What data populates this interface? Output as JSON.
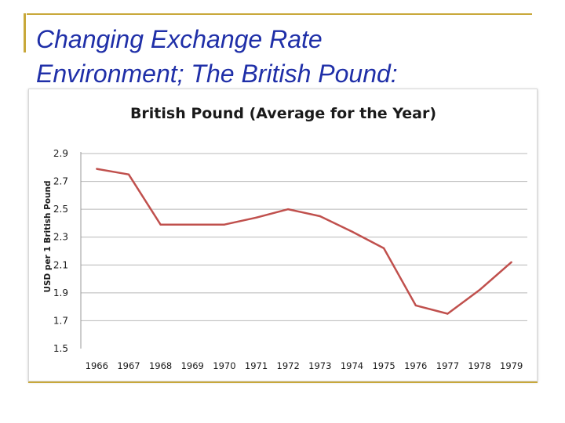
{
  "slide": {
    "title": "Changing Exchange Rate\nEnvironment; The British Pound:",
    "accent_color": "#c8a83a",
    "title_color": "#1f2fa8"
  },
  "chart_data": {
    "type": "line",
    "title": "British Pound (Average for the Year)",
    "xlabel": "",
    "ylabel": "USD per 1 British Pound",
    "categories": [
      "1966",
      "1967",
      "1968",
      "1969",
      "1970",
      "1971",
      "1972",
      "1973",
      "1974",
      "1975",
      "1976",
      "1977",
      "1978",
      "1979"
    ],
    "series": [
      {
        "values": [
          2.79,
          2.75,
          2.39,
          2.39,
          2.39,
          2.44,
          2.5,
          2.45,
          2.34,
          2.22,
          1.81,
          1.75,
          1.92,
          2.12
        ],
        "color": "#c0504d"
      }
    ],
    "ylim": [
      1.5,
      2.9
    ],
    "yticks": [
      "1.5",
      "1.7",
      "1.9",
      "2.1",
      "2.3",
      "2.5",
      "2.7",
      "2.9"
    ],
    "grid": true,
    "legend": "none"
  }
}
